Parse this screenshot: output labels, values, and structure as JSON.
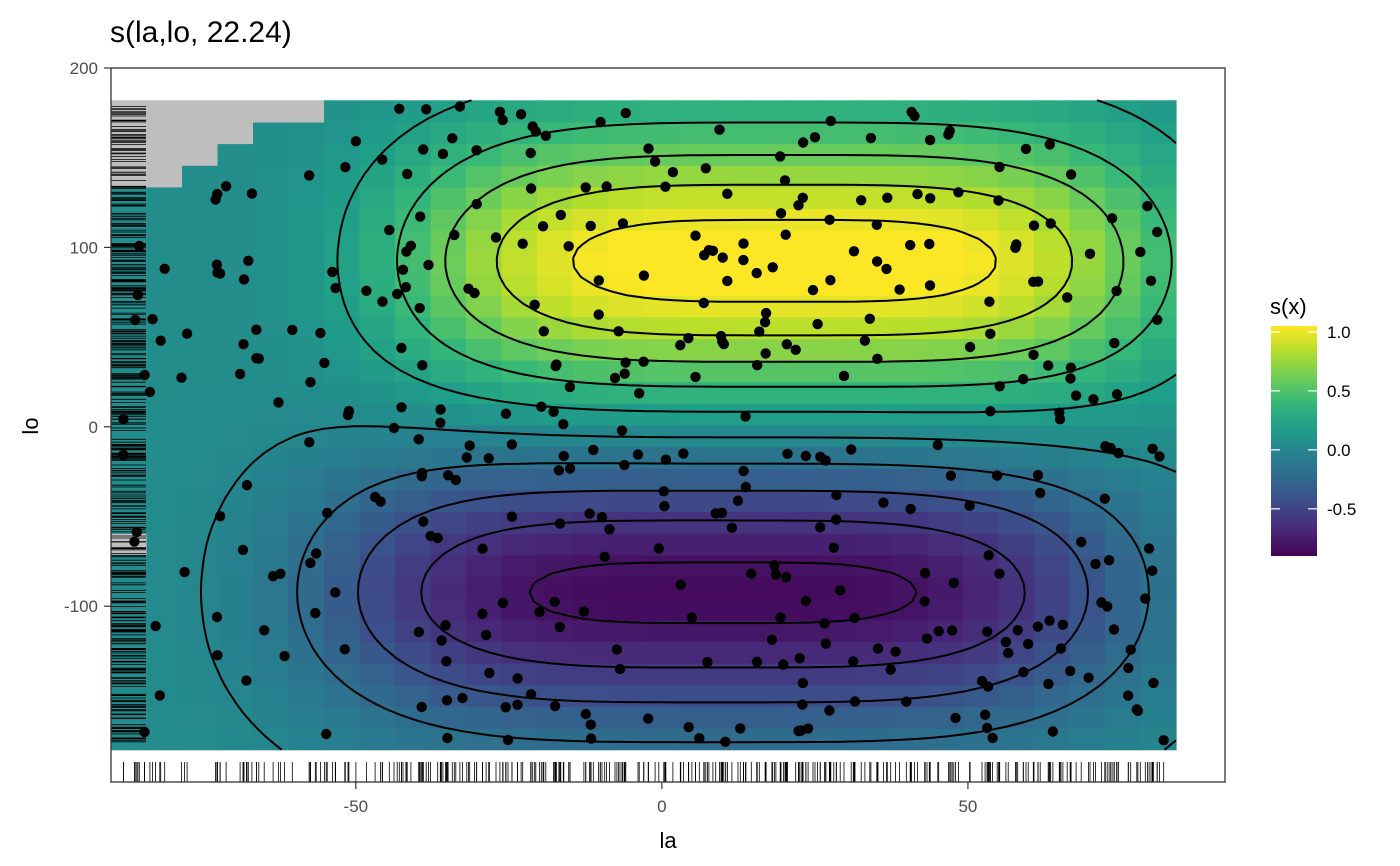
{
  "chart_data": {
    "type": "heatmap",
    "title": "s(la,lo, 22.24)",
    "xlabel": "la",
    "ylabel": "lo",
    "xlim": [
      -90,
      92
    ],
    "ylim": [
      -198,
      200
    ],
    "x_ticks": [
      -50,
      0,
      50
    ],
    "x_tick_labels": [
      "-50",
      "0",
      "50"
    ],
    "y_ticks": [
      -100,
      0,
      100,
      200
    ],
    "y_tick_labels": [
      "-100",
      "0",
      "100",
      "200"
    ],
    "grid": false,
    "surface": {
      "x_range": [
        -90,
        84
      ],
      "y_range": [
        -180,
        182
      ],
      "upper_peak": {
        "la": 20,
        "lo": 92,
        "value": 1.05
      },
      "lower_trough": {
        "la": 10,
        "lo": -92,
        "value": -0.9
      },
      "grey_missing_cells": "top-left corner and a small block near la=-88, lo=-60"
    },
    "contour_levels": [
      -0.8,
      -0.6,
      -0.4,
      -0.2,
      0.0,
      0.2,
      0.4,
      0.6,
      0.8,
      1.0
    ],
    "legend": {
      "title": "s(x)",
      "placement": "right",
      "range": [
        -0.9,
        1.05
      ],
      "ticks": [
        1.0,
        0.5,
        0.0,
        -0.5
      ],
      "tick_labels": [
        "1.0",
        "0.5",
        "0.0",
        "-0.5"
      ]
    },
    "points_count": 400
  }
}
